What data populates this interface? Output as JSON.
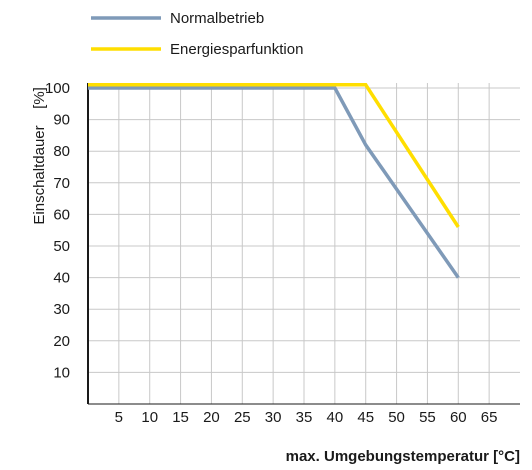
{
  "chart_data": {
    "type": "line",
    "xlabel": "max. Umgebungstemperatur [°C]",
    "ylabel_text": "Einschaltdauer",
    "ylabel_unit": "[%]",
    "xlim": [
      0,
      70
    ],
    "ylim": [
      0,
      100
    ],
    "x_ticks": [
      5,
      10,
      15,
      20,
      25,
      30,
      35,
      40,
      45,
      50,
      55,
      60,
      65
    ],
    "y_ticks": [
      10,
      20,
      30,
      40,
      50,
      60,
      70,
      80,
      90,
      100
    ],
    "grid": true,
    "legend_position": "top",
    "series": [
      {
        "name": "Normalbetrieb",
        "color": "#7f9ab8",
        "points": [
          [
            0,
            100
          ],
          [
            40,
            100
          ],
          [
            45,
            82
          ],
          [
            60,
            40
          ]
        ]
      },
      {
        "name": "Energiesparfunktion",
        "color": "#ffde00",
        "points": [
          [
            0,
            101
          ],
          [
            45,
            101
          ],
          [
            60,
            56
          ]
        ]
      }
    ]
  }
}
